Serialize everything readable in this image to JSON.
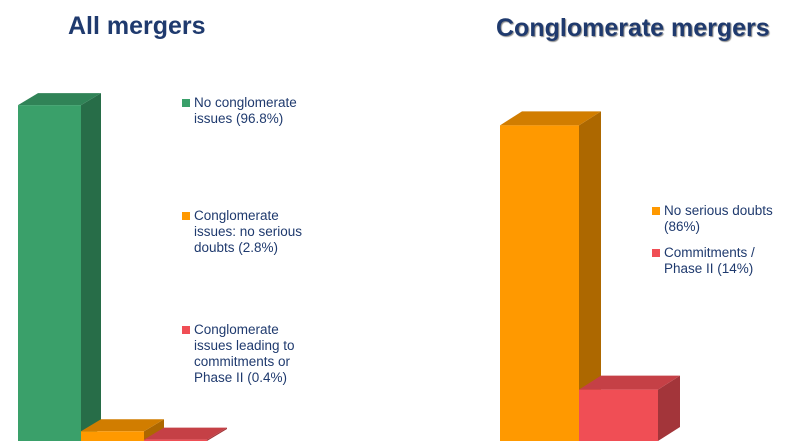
{
  "chart_data": [
    {
      "type": "bar3d",
      "title": "All mergers",
      "categories": [
        "No conglomerate issues (96.8%)",
        "Conglomerate issues: no serious doubts (2.8%)",
        "Conglomerate issues leading to commitments or Phase II (0.4%)"
      ],
      "values": [
        96.8,
        2.8,
        0.4
      ],
      "colors": [
        "#3aa06a",
        "#ff9900",
        "#f04e55"
      ]
    },
    {
      "type": "bar3d",
      "title": "Conglomerate mergers",
      "categories": [
        "No serious doubts (86%)",
        "Commitments / Phase II (14%)"
      ],
      "values": [
        86,
        14
      ],
      "colors": [
        "#ff9900",
        "#f04e55"
      ]
    }
  ]
}
